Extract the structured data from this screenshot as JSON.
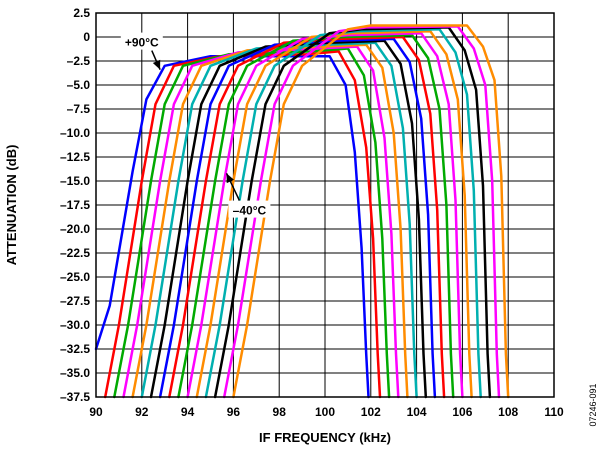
{
  "chart_data": {
    "type": "line",
    "xlabel": "IF FREQUENCY (kHz)",
    "ylabel": "ATTENUATION (dB)",
    "xlim": [
      90,
      110
    ],
    "ylim": [
      -37.5,
      2.5
    ],
    "x_ticks": [
      90,
      92,
      94,
      96,
      98,
      100,
      102,
      104,
      106,
      108,
      110
    ],
    "y_ticks": [
      2.5,
      0,
      -2.5,
      -5.0,
      -7.5,
      -10.0,
      -12.5,
      -15.0,
      -17.5,
      -20.0,
      -22.5,
      -25.0,
      -27.5,
      -30.0,
      -32.5,
      -35.0,
      -37.5
    ],
    "x_tick_labels": [
      "90",
      "92",
      "94",
      "96",
      "98",
      "100",
      "102",
      "104",
      "106",
      "108",
      "110"
    ],
    "y_tick_labels": [
      "2.5",
      "0",
      "–2.5",
      "–5.0",
      "–7.5",
      "–10.0",
      "–12.5",
      "–15.0",
      "–17.5",
      "–20.0",
      "–22.5",
      "–25.0",
      "–27.5",
      "–30.0",
      "–32.5",
      "–35.0",
      "–37.5"
    ],
    "grid": true,
    "colors": [
      "#0000ff",
      "#ff0000",
      "#00aa00",
      "#ff00ff",
      "#ff8c00",
      "#00b0b0",
      "#000000"
    ],
    "series": [
      {
        "color": "#0000ff",
        "x": [
          90.0,
          90.6,
          91.6,
          92.2,
          93.0,
          95.0,
          99.0,
          100.2,
          100.9,
          101.3,
          101.6,
          101.8,
          101.9
        ],
        "y": [
          -32.5,
          -28.0,
          -14.0,
          -6.5,
          -3.0,
          -2.0,
          -2.0,
          -2.0,
          -5.0,
          -12.0,
          -22.0,
          -33.0,
          -37.5
        ]
      },
      {
        "color": "#ff0000",
        "x": [
          90.4,
          91.0,
          92.0,
          92.6,
          93.4,
          95.4,
          99.2,
          100.6,
          101.3,
          101.8,
          102.1,
          102.3,
          102.4
        ],
        "y": [
          -37.5,
          -30.0,
          -15.0,
          -7.0,
          -3.0,
          -2.0,
          -1.8,
          -1.5,
          -4.5,
          -11.5,
          -21.0,
          -33.0,
          -37.5
        ]
      },
      {
        "color": "#00aa00",
        "x": [
          90.8,
          91.4,
          92.4,
          93.0,
          93.8,
          95.8,
          99.4,
          101.0,
          101.7,
          102.2,
          102.5,
          102.7,
          102.8
        ],
        "y": [
          -37.5,
          -30.0,
          -15.0,
          -7.0,
          -3.0,
          -1.8,
          -1.5,
          -1.2,
          -4.0,
          -11.0,
          -21.0,
          -33.0,
          -37.5
        ]
      },
      {
        "color": "#ff00ff",
        "x": [
          91.2,
          91.8,
          92.8,
          93.4,
          94.2,
          96.2,
          99.6,
          101.4,
          102.1,
          102.6,
          102.9,
          103.1,
          103.2
        ],
        "y": [
          -37.5,
          -30.0,
          -15.0,
          -7.0,
          -3.0,
          -1.6,
          -1.2,
          -1.0,
          -3.5,
          -10.5,
          -20.5,
          -33.0,
          -37.5
        ]
      },
      {
        "color": "#ff8c00",
        "x": [
          91.6,
          92.2,
          93.2,
          93.8,
          94.6,
          96.6,
          99.8,
          101.8,
          102.5,
          103.0,
          103.3,
          103.5,
          103.6
        ],
        "y": [
          -37.5,
          -30.0,
          -15.0,
          -7.0,
          -3.0,
          -1.4,
          -1.0,
          -0.8,
          -3.2,
          -10.0,
          -20.0,
          -33.0,
          -37.5
        ]
      },
      {
        "color": "#00b0b0",
        "x": [
          92.0,
          92.6,
          93.6,
          94.2,
          95.0,
          97.0,
          100.0,
          102.2,
          102.9,
          103.4,
          103.7,
          103.9,
          104.0
        ],
        "y": [
          -37.5,
          -30.0,
          -15.0,
          -7.0,
          -3.0,
          -1.2,
          -0.8,
          -0.6,
          -3.0,
          -9.5,
          -19.5,
          -33.0,
          -37.5
        ]
      },
      {
        "color": "#000000",
        "x": [
          92.4,
          93.0,
          94.0,
          94.6,
          95.4,
          97.4,
          100.2,
          102.6,
          103.3,
          103.8,
          104.1,
          104.3,
          104.4
        ],
        "y": [
          -37.5,
          -30.0,
          -15.0,
          -7.0,
          -3.0,
          -1.0,
          -0.6,
          -0.4,
          -2.8,
          -9.0,
          -19.0,
          -33.0,
          -37.5
        ]
      },
      {
        "color": "#0000ff",
        "x": [
          92.8,
          93.4,
          94.4,
          95.0,
          95.8,
          97.8,
          100.4,
          103.0,
          103.7,
          104.2,
          104.5,
          104.7,
          104.8
        ],
        "y": [
          -37.5,
          -30.0,
          -15.0,
          -7.0,
          -3.0,
          -0.8,
          -0.4,
          -0.2,
          -2.6,
          -8.5,
          -18.5,
          -33.0,
          -37.5
        ]
      },
      {
        "color": "#ff0000",
        "x": [
          93.2,
          93.8,
          94.8,
          95.4,
          96.2,
          98.2,
          100.6,
          103.4,
          104.1,
          104.6,
          104.9,
          105.1,
          105.2
        ],
        "y": [
          -37.5,
          -30.0,
          -15.0,
          -7.0,
          -3.0,
          -0.6,
          -0.2,
          0.0,
          -2.4,
          -8.0,
          -18.0,
          -33.0,
          -37.5
        ]
      },
      {
        "color": "#00aa00",
        "x": [
          93.6,
          94.2,
          95.2,
          95.8,
          96.6,
          98.6,
          100.8,
          103.8,
          104.5,
          105.0,
          105.3,
          105.5,
          105.6
        ],
        "y": [
          -37.5,
          -30.0,
          -15.0,
          -7.0,
          -3.0,
          -0.4,
          0.0,
          0.2,
          -2.2,
          -7.5,
          -17.5,
          -33.0,
          -37.5
        ]
      },
      {
        "color": "#ff00ff",
        "x": [
          94.0,
          94.6,
          95.6,
          96.2,
          97.0,
          99.0,
          101.0,
          104.2,
          104.9,
          105.4,
          105.7,
          105.9,
          106.0
        ],
        "y": [
          -37.5,
          -30.0,
          -15.0,
          -7.0,
          -3.0,
          -0.2,
          0.2,
          0.4,
          -2.0,
          -7.0,
          -17.0,
          -33.0,
          -37.5
        ]
      },
      {
        "color": "#ff8c00",
        "x": [
          94.4,
          95.0,
          96.0,
          96.6,
          97.4,
          99.4,
          101.2,
          104.6,
          105.3,
          105.8,
          106.1,
          106.3,
          106.4
        ],
        "y": [
          -37.5,
          -30.0,
          -15.0,
          -7.0,
          -3.0,
          0.0,
          0.4,
          0.6,
          -1.8,
          -6.5,
          -16.5,
          -33.0,
          -37.5
        ]
      },
      {
        "color": "#00b0b0",
        "x": [
          94.8,
          95.4,
          96.4,
          97.0,
          97.8,
          99.8,
          101.4,
          105.0,
          105.7,
          106.2,
          106.5,
          106.7,
          106.8
        ],
        "y": [
          -37.5,
          -30.0,
          -15.0,
          -7.0,
          -3.0,
          0.2,
          0.6,
          0.8,
          -1.6,
          -6.0,
          -16.0,
          -33.0,
          -37.5
        ]
      },
      {
        "color": "#000000",
        "x": [
          95.2,
          95.8,
          96.8,
          97.4,
          98.2,
          100.2,
          101.6,
          105.4,
          106.1,
          106.6,
          106.9,
          107.1,
          107.2
        ],
        "y": [
          -37.5,
          -30.0,
          -15.0,
          -7.0,
          -3.0,
          0.4,
          0.8,
          1.0,
          -1.4,
          -5.5,
          -15.5,
          -33.0,
          -37.5
        ]
      },
      {
        "color": "#ff00ff",
        "x": [
          95.6,
          96.2,
          97.2,
          97.8,
          98.6,
          100.6,
          101.8,
          105.8,
          106.5,
          107.0,
          107.3,
          107.5,
          107.6
        ],
        "y": [
          -37.5,
          -30.0,
          -15.0,
          -7.0,
          -3.0,
          0.6,
          1.0,
          1.1,
          -1.2,
          -5.0,
          -15.0,
          -33.0,
          -37.5
        ]
      },
      {
        "color": "#ff8c00",
        "x": [
          96.0,
          96.6,
          97.6,
          98.2,
          99.0,
          101.0,
          102.0,
          106.2,
          106.9,
          107.4,
          107.7,
          107.9,
          108.0
        ],
        "y": [
          -37.5,
          -30.0,
          -15.0,
          -7.0,
          -3.0,
          0.8,
          1.2,
          1.2,
          -1.0,
          -4.5,
          -14.5,
          -33.0,
          -37.5
        ]
      }
    ],
    "annotations": [
      {
        "text": "+90°C",
        "x": 92.0,
        "y": -1.0,
        "arrow_to": [
          92.8,
          -3.4
        ]
      },
      {
        "text": "–40°C",
        "x": 96.7,
        "y": -18.5,
        "arrow_to": [
          95.7,
          -14.2
        ]
      }
    ]
  },
  "figure_id": "07246-091"
}
